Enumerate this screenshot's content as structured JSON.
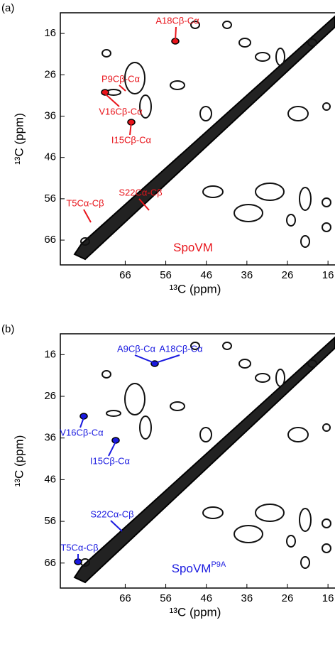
{
  "chart_data": [
    {
      "type": "contour",
      "panel_label": "(a)",
      "xlabel": "¹³C (ppm)",
      "ylabel": "¹³C (ppm)",
      "xlim": [
        82,
        12
      ],
      "ylim": [
        11,
        72
      ],
      "xticks": [
        66,
        56,
        46,
        36,
        26,
        16
      ],
      "yticks": [
        16,
        26,
        36,
        46,
        56,
        66
      ],
      "color": "#e8141b",
      "annotations": [
        "A18Cβ-Cα",
        "P9Cβ-Cα",
        "V16Cβ-Cα",
        "I15Cβ-Cα",
        "S22Cα-Cβ",
        "T5Cα-Cβ"
      ],
      "sample_label": {
        "name": "SpoVM"
      }
    },
    {
      "type": "contour",
      "panel_label": "(b)",
      "xlabel": "¹³C (ppm)",
      "ylabel": "¹³C (ppm)",
      "xlim": [
        82,
        12
      ],
      "ylim": [
        11,
        72
      ],
      "xticks": [
        66,
        56,
        46,
        36,
        26,
        16
      ],
      "yticks": [
        16,
        26,
        36,
        46,
        56,
        66
      ],
      "color": "#1a1ae0",
      "annotations": [
        "A9Cβ-Cα",
        "A18Cβ-Cα",
        "V16Cβ-Cα",
        "I15Cβ-Cα",
        "S22Cα-Cβ",
        "T5Cα-Cβ"
      ],
      "sample_label": {
        "name": "SpoVM",
        "superscript": "P9A"
      }
    }
  ]
}
